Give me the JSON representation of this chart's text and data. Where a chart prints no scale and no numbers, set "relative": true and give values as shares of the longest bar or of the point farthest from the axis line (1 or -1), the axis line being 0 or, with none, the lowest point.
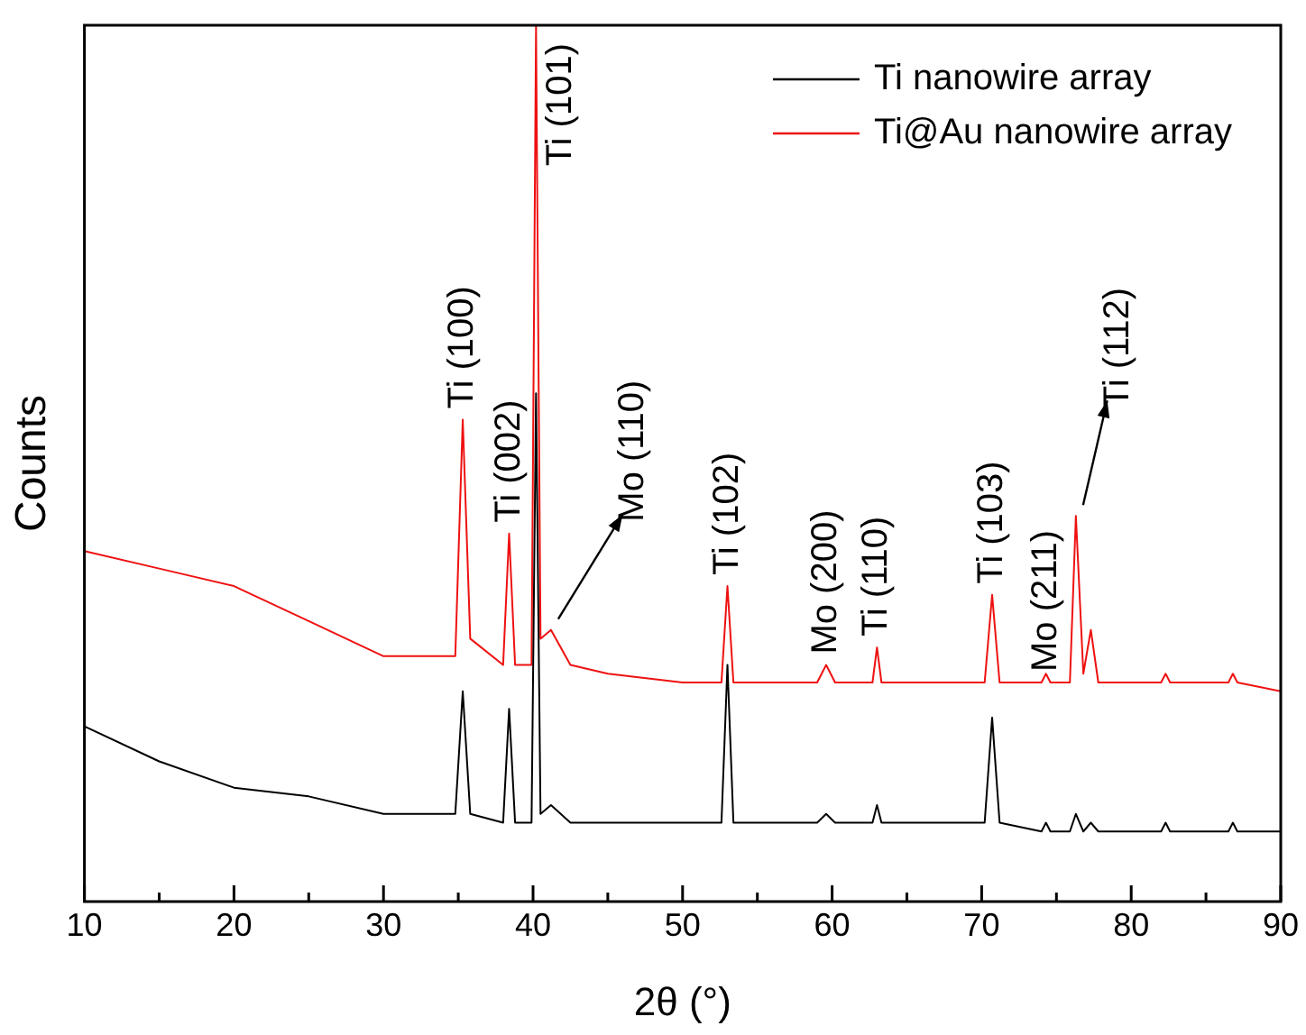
{
  "chart_data": {
    "type": "line",
    "relative": true,
    "xlabel": "2θ (°)",
    "ylabel": "Counts",
    "legend": "top right",
    "marker": "none",
    "grid": false,
    "xlim": [
      10,
      90
    ],
    "xticks": [
      10,
      {
        "value": 15,
        "label": null
      },
      20,
      {
        "value": 25,
        "label": null
      },
      30,
      {
        "value": 35,
        "label": null
      },
      40,
      {
        "value": 45,
        "label": null
      },
      50,
      {
        "value": 55,
        "label": null
      },
      60,
      {
        "value": 65,
        "label": null
      },
      70,
      {
        "value": 75,
        "label": null
      },
      80,
      {
        "value": 85,
        "label": null
      },
      90
    ],
    "x": [
      10,
      15,
      20,
      25,
      30,
      34.8,
      35.3,
      35.8,
      38,
      38.4,
      38.8,
      39.9,
      40.2,
      40.5,
      41.2,
      42.5,
      45,
      50,
      52.6,
      53,
      53.4,
      59,
      59.6,
      60.2,
      62.7,
      63,
      63.3,
      70.2,
      70.7,
      71.2,
      74,
      74.3,
      74.6,
      75.9,
      76.3,
      76.8,
      77.3,
      77.8,
      82,
      82.3,
      82.6,
      86.5,
      86.8,
      87.1,
      90
    ],
    "series": [
      {
        "name": "Ti nanowire array",
        "color": "#000000",
        "values": [
          0.2,
          0.16,
          0.13,
          0.12,
          0.1,
          0.1,
          0.24,
          0.1,
          0.09,
          0.22,
          0.09,
          0.09,
          0.58,
          0.1,
          0.11,
          0.09,
          0.09,
          0.09,
          0.09,
          0.27,
          0.09,
          0.09,
          0.1,
          0.09,
          0.09,
          0.11,
          0.09,
          0.09,
          0.21,
          0.09,
          0.08,
          0.09,
          0.08,
          0.08,
          0.1,
          0.08,
          0.09,
          0.08,
          0.08,
          0.09,
          0.08,
          0.08,
          0.09,
          0.08,
          0.08
        ]
      },
      {
        "name": "Ti@Au nanowire array",
        "color": "#ee1111",
        "values": [
          0.4,
          0.38,
          0.36,
          0.32,
          0.28,
          0.28,
          0.55,
          0.3,
          0.27,
          0.42,
          0.27,
          0.27,
          1,
          0.3,
          0.31,
          0.27,
          0.26,
          0.25,
          0.25,
          0.36,
          0.25,
          0.25,
          0.27,
          0.25,
          0.25,
          0.29,
          0.25,
          0.25,
          0.35,
          0.25,
          0.25,
          0.26,
          0.25,
          0.25,
          0.44,
          0.26,
          0.31,
          0.25,
          0.25,
          0.26,
          0.25,
          0.25,
          0.26,
          0.25,
          0.24
        ]
      }
    ],
    "annotations": [
      {
        "text": "Ti (100)",
        "x": 35.3,
        "y": 0.55
      },
      {
        "text": "Ti (002)",
        "x": 38.4,
        "y": 0.42
      },
      {
        "text": "Ti (101)",
        "x": 40.2,
        "y": 1
      },
      {
        "text": "Mo (110)",
        "x": 41.2,
        "y": 0.31
      },
      {
        "text": "Ti (102)",
        "x": 53,
        "y": 0.36
      },
      {
        "text": "Mo (200)",
        "x": 59.6,
        "y": 0.27
      },
      {
        "text": "Ti (110)",
        "x": 63,
        "y": 0.29
      },
      {
        "text": "Ti (103)",
        "x": 70.7,
        "y": 0.35
      },
      {
        "text": "Mo (211)",
        "x": 74.3,
        "y": 0.25
      },
      {
        "text": "Ti (112)",
        "x": 76.3,
        "y": 0.44
      }
    ]
  }
}
